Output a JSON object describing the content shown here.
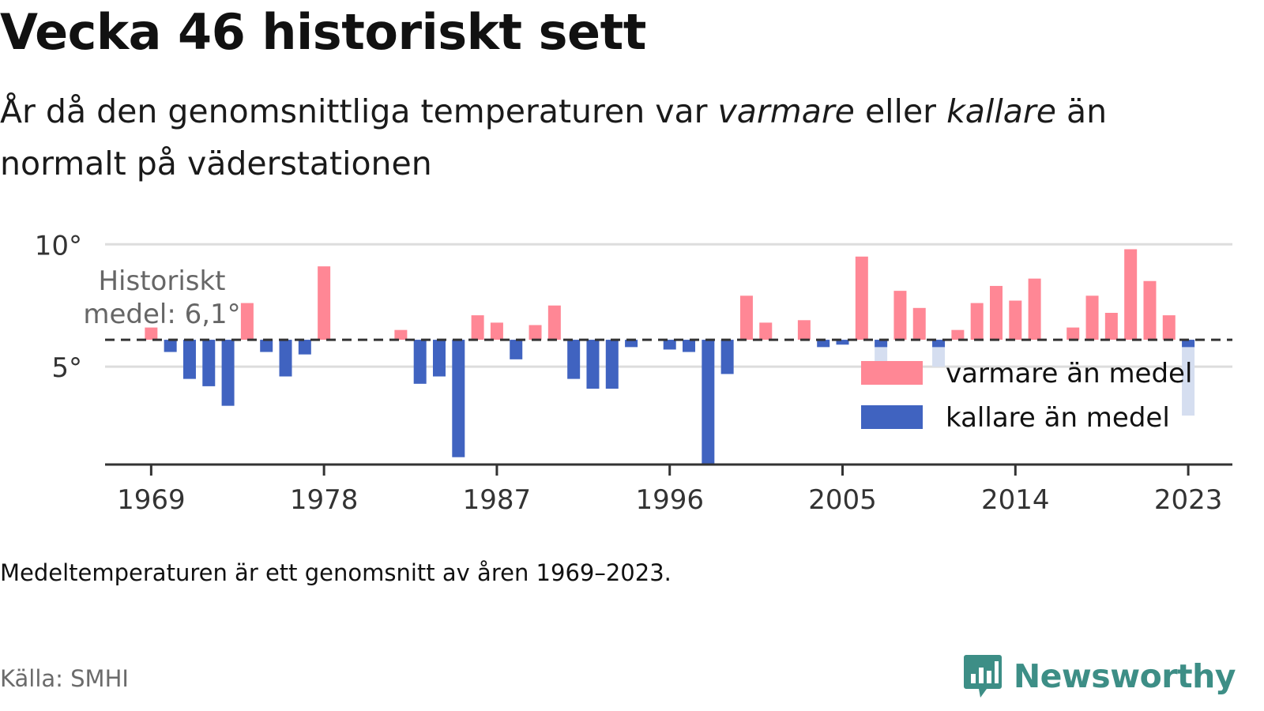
{
  "title": "Vecka 46 historiskt sett",
  "subtitle": {
    "part1": "År då den genomsnittliga temperaturen var ",
    "warm_word": "varmare",
    "part2": " eller ",
    "cold_word": "kallare",
    "part3": " än normalt på väderstationen"
  },
  "note": "Medeltemperaturen är ett genomsnitt av åren 1969–2023.",
  "source": "Källa: SMHI",
  "brand": {
    "name": "Newsworthy",
    "icon": "bar-chart-speech-bubble-icon"
  },
  "colors": {
    "warm": "#ff8795",
    "cold": "#4063c0",
    "cold_light": "#d5def0",
    "grid": "#dddddd",
    "axis": "#333333",
    "mean_line": "#333333",
    "brand": "#3d8e86"
  },
  "chart_data": {
    "type": "bar",
    "baseline": 6.1,
    "baseline_label_line1": "Historiskt",
    "baseline_label_line2": "medel: 6,1°",
    "ylim": [
      1.0,
      10.3
    ],
    "yticks": [
      5,
      10
    ],
    "ytick_labels": [
      "5°",
      "10°"
    ],
    "xlim": [
      1966.6,
      2025.3
    ],
    "xticks": [
      1969,
      1978,
      1987,
      1996,
      2005,
      2014,
      2023
    ],
    "xtick_labels": [
      "1969",
      "1978",
      "1987",
      "1996",
      "2005",
      "2014",
      "2023"
    ],
    "grid": true,
    "legend": {
      "placement": "right",
      "items": [
        {
          "label": "varmare än medel",
          "color_key": "warm"
        },
        {
          "label": "kallare än medel",
          "color_key": "cold"
        }
      ]
    },
    "x": [
      1969,
      1970,
      1971,
      1972,
      1973,
      1974,
      1975,
      1976,
      1977,
      1978,
      1982,
      1983,
      1984,
      1985,
      1986,
      1987,
      1988,
      1989,
      1990,
      1991,
      1992,
      1993,
      1994,
      1996,
      1997,
      1998,
      1999,
      2000,
      2001,
      2003,
      2004,
      2005,
      2006,
      2007,
      2008,
      2009,
      2010,
      2011,
      2012,
      2013,
      2014,
      2015,
      2017,
      2018,
      2019,
      2020,
      2021,
      2022,
      2023
    ],
    "values": [
      6.6,
      5.6,
      4.5,
      4.2,
      3.4,
      7.6,
      5.6,
      4.6,
      5.5,
      9.1,
      6.5,
      4.3,
      4.6,
      1.3,
      7.1,
      6.8,
      5.3,
      6.7,
      7.5,
      4.5,
      4.1,
      4.1,
      5.8,
      5.7,
      5.6,
      1.0,
      4.7,
      7.9,
      6.8,
      6.9,
      5.8,
      5.9,
      9.5,
      5.8,
      8.1,
      7.4,
      5.8,
      6.5,
      7.6,
      8.3,
      7.7,
      8.6,
      6.6,
      7.9,
      7.2,
      9.8,
      8.5,
      7.1,
      5.8
    ],
    "faded_values": [
      {
        "x": 2007,
        "value": 5.0
      },
      {
        "x": 2010,
        "value": 5.0
      },
      {
        "x": 2023,
        "value": 3.0
      }
    ]
  }
}
